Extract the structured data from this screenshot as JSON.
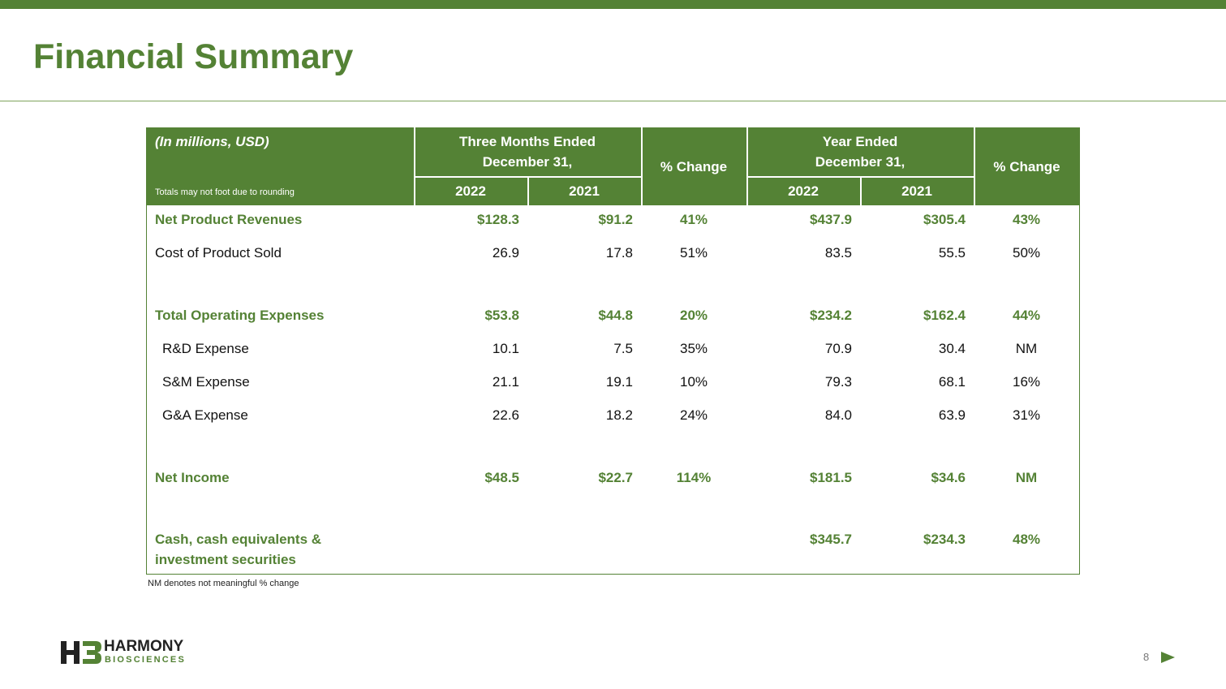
{
  "header": {
    "title": "Financial Summary"
  },
  "table": {
    "units": "(In millions, USD)",
    "note": "Totals may not foot due to rounding",
    "group_1": [
      "Three Months Ended",
      "December 31,"
    ],
    "change_1": "% Change",
    "group_2": [
      "Year Ended",
      "December 31,"
    ],
    "change_2": "% Change",
    "years": [
      "2022",
      "2021",
      "2022",
      "2021"
    ],
    "rows": [
      {
        "label": [
          "Net Product Revenues"
        ],
        "bold": true,
        "indent": false,
        "cells": [
          "$128.3",
          "$91.2",
          "41%",
          "$437.9",
          "$305.4",
          "43%"
        ]
      },
      {
        "label": [
          "Cost of Product Sold"
        ],
        "bold": false,
        "indent": false,
        "cells": [
          "26.9",
          "17.8",
          "51%",
          "83.5",
          "55.5",
          "50%"
        ]
      },
      {
        "label": [
          "Total Operating Expenses"
        ],
        "bold": true,
        "indent": false,
        "cells": [
          "$53.8",
          "$44.8",
          "20%",
          "$234.2",
          "$162.4",
          "44%"
        ]
      },
      {
        "label": [
          "R&D Expense"
        ],
        "bold": false,
        "indent": true,
        "cells": [
          "10.1",
          "7.5",
          "35%",
          "70.9",
          "30.4",
          "NM"
        ]
      },
      {
        "label": [
          "S&M Expense"
        ],
        "bold": false,
        "indent": true,
        "cells": [
          "21.1",
          "19.1",
          "10%",
          "79.3",
          "68.1",
          "16%"
        ]
      },
      {
        "label": [
          "G&A Expense"
        ],
        "bold": false,
        "indent": true,
        "cells": [
          "22.6",
          "18.2",
          "24%",
          "84.0",
          "63.9",
          "31%"
        ]
      },
      {
        "label": [
          "Net Income"
        ],
        "bold": true,
        "indent": false,
        "cells": [
          "$48.5",
          "$22.7",
          "114%",
          "$181.5",
          "$34.6",
          "NM"
        ]
      },
      {
        "label": [
          "Cash, cash equivalents &",
          "investment securities"
        ],
        "bold": true,
        "indent": false,
        "cells": [
          null,
          null,
          null,
          "$345.7",
          "$234.3",
          "48%"
        ]
      }
    ]
  },
  "footnote": "NM denotes not meaningful % change",
  "logo": {
    "name": "HARMONY",
    "sub": "BIOSCIENCES"
  },
  "page_number": "8"
}
